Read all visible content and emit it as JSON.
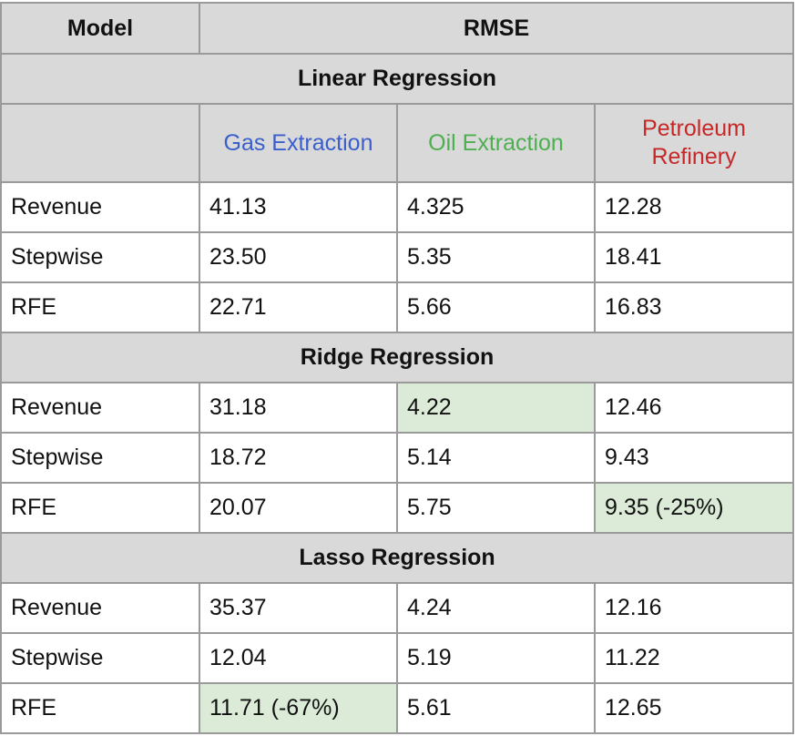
{
  "header": {
    "model": "Model",
    "rmse": "RMSE"
  },
  "subheaders": {
    "gas": "Gas Extraction",
    "oil": "Oil Extraction",
    "petroleum": "Petroleum Refinery"
  },
  "colors": {
    "gas": "#3a5fcd",
    "oil": "#4caf50",
    "petroleum": "#c62828",
    "highlight": "#dcebd7",
    "header_bg": "#d9d9d9"
  },
  "groups": [
    {
      "title": "Linear Regression",
      "rows": [
        {
          "model": "Revenue",
          "gas": "41.13",
          "oil": "4.325",
          "petroleum": "12.28"
        },
        {
          "model": "Stepwise",
          "gas": "23.50",
          "oil": "5.35",
          "petroleum": "18.41"
        },
        {
          "model": "RFE",
          "gas": "22.71",
          "oil": "5.66",
          "petroleum": "16.83"
        }
      ]
    },
    {
      "title": "Ridge Regression",
      "rows": [
        {
          "model": "Revenue",
          "gas": "31.18",
          "oil": "4.22",
          "petroleum": "12.46",
          "highlight": "oil"
        },
        {
          "model": "Stepwise",
          "gas": "18.72",
          "oil": "5.14",
          "petroleum": "9.43"
        },
        {
          "model": "RFE",
          "gas": "20.07",
          "oil": "5.75",
          "petroleum": "9.35 (-25%)",
          "highlight": "petroleum"
        }
      ]
    },
    {
      "title": "Lasso Regression",
      "rows": [
        {
          "model": "Revenue",
          "gas": "35.37",
          "oil": "4.24",
          "petroleum": "12.16"
        },
        {
          "model": "Stepwise",
          "gas": "12.04",
          "oil": "5.19",
          "petroleum": "11.22"
        },
        {
          "model": "RFE",
          "gas": "11.71 (-67%)",
          "oil": "5.61",
          "petroleum": "12.65",
          "highlight": "gas"
        }
      ]
    }
  ]
}
